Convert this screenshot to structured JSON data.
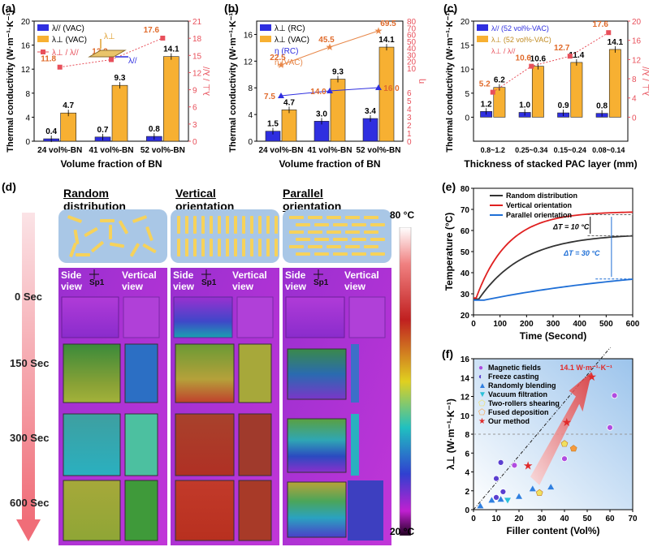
{
  "figure_labels": {
    "a": "(a)",
    "b": "(b)",
    "c": "(c)",
    "d": "(d)",
    "e": "(e)",
    "f": "(f)"
  },
  "colors": {
    "blue": "#2f2fe0",
    "orange": "#f7b032",
    "red_axis": "#e8505b"
  },
  "chart_data": [
    {
      "id": "a",
      "type": "bar",
      "xlabel": "Volume fraction of BN",
      "ylabel": "Thermal conductivity (W·m⁻¹·K⁻¹)",
      "ylabel2": "λ⊥ / λ//",
      "categories": [
        "24 vol%-BN",
        "41 vol%-BN",
        "52 vol%-BN"
      ],
      "ylim": [
        0,
        20
      ],
      "yticks": [
        "0",
        "4",
        "8",
        "12",
        "16",
        "20"
      ],
      "y2lim": [
        -3,
        21
      ],
      "y2ticks": [
        "0",
        "3",
        "6",
        "9",
        "12",
        "15",
        "18",
        "21"
      ],
      "series": [
        {
          "name": "λ// (VAC)",
          "values": [
            0.4,
            0.7,
            0.8
          ],
          "labels": [
            "0.4",
            "0.7",
            "0.8"
          ]
        },
        {
          "name": "λ⊥ (VAC)",
          "values": [
            4.7,
            9.3,
            14.1
          ],
          "labels": [
            "4.7",
            "9.3",
            "14.1"
          ]
        }
      ],
      "ratio": {
        "name": "λ⊥ / λ//",
        "values": [
          11.8,
          13.3,
          17.6
        ],
        "labels": [
          "11.8",
          "13.3",
          "17.6"
        ]
      },
      "inset_labels": {
        "perp": "λ⊥",
        "par": "λ//"
      }
    },
    {
      "id": "b",
      "type": "bar",
      "xlabel": "Volume fraction of BN",
      "ylabel": "Thermal conductivity (W·m⁻¹·K⁻¹)",
      "ylabel2": "η",
      "categories": [
        "24 vol%-BN",
        "41 vol%-BN",
        "52 vol%-BN"
      ],
      "ylim": [
        0,
        18
      ],
      "yticks": [
        "0",
        "4",
        "8",
        "12",
        "16"
      ],
      "y2ticks_top": [
        "10",
        "20",
        "30",
        "40",
        "50",
        "60",
        "70",
        "80"
      ],
      "y2ticks_bottom": [
        "0",
        "1",
        "2",
        "3",
        "4",
        "5",
        "6"
      ],
      "series": [
        {
          "name": "λ⊥ (RC)",
          "values": [
            1.5,
            3.0,
            3.4
          ],
          "labels": [
            "1.5",
            "3.0",
            "3.4"
          ]
        },
        {
          "name": "λ⊥ (VAC)",
          "values": [
            4.7,
            9.3,
            14.1
          ],
          "labels": [
            "4.7",
            "9.3",
            "14.1"
          ]
        }
      ],
      "eta_rc": {
        "name": "η (RC)",
        "labels": [
          "7.5",
          "14.0",
          "16.0"
        ]
      },
      "eta_vac": {
        "name": "η (VAC)",
        "labels": [
          "22.5",
          "45.5",
          "69.5"
        ]
      }
    },
    {
      "id": "c",
      "type": "bar",
      "xlabel": "Thickness of stacked PAC layer (mm)",
      "ylabel": "Thermal conductivity (W·m⁻¹·K⁻¹)",
      "ylabel2": "λ⊥ / λ//",
      "categories": [
        "0.8~1.2",
        "0.25~0.34",
        "0.15~0.24",
        "0.08~0.14"
      ],
      "ylim": [
        -5,
        20
      ],
      "yticks": [
        "0",
        "5",
        "10",
        "15",
        "20"
      ],
      "y2ticks": [
        "0",
        "4",
        "8",
        "12",
        "16",
        "20"
      ],
      "series": [
        {
          "name": "λ// (52 vol%-VAC)",
          "values": [
            1.2,
            1.0,
            0.9,
            0.8
          ],
          "labels": [
            "1.2",
            "1.0",
            "0.9",
            "0.8"
          ]
        },
        {
          "name": "λ⊥ (52 vol%-VAC)",
          "values": [
            6.2,
            10.6,
            11.4,
            14.1
          ],
          "labels": [
            "6.2",
            "10.6",
            "11.4",
            "14.1"
          ]
        }
      ],
      "ratio": {
        "name": "λ⊥ / λ//",
        "values": [
          5.2,
          10.6,
          12.7,
          17.6
        ],
        "labels": [
          "5.2",
          "10.6",
          "12.7",
          "17.6"
        ]
      }
    },
    {
      "id": "e",
      "type": "line",
      "xlabel": "Time (Second)",
      "ylabel": "Temperature (°C)",
      "xlim": [
        0,
        600
      ],
      "ylim": [
        20,
        80
      ],
      "xticks": [
        "0",
        "100",
        "200",
        "300",
        "400",
        "500",
        "600"
      ],
      "yticks": [
        "20",
        "30",
        "40",
        "50",
        "60",
        "70",
        "80"
      ],
      "series": [
        {
          "name": "Random distribution",
          "color": "#333333",
          "end": 57.5
        },
        {
          "name": "Vertical orientation",
          "color": "#e02020",
          "end": 67.5
        },
        {
          "name": "Parallel orientation",
          "color": "#1f6fd6",
          "end": 37
        }
      ],
      "annotations": [
        "ΔT = 10 °C",
        "ΔT = 30 °C"
      ]
    },
    {
      "id": "f",
      "type": "scatter",
      "xlabel": "Filler content (Vol%)",
      "ylabel": "λ⊥ (W·m⁻¹·K⁻¹)",
      "xlim": [
        0,
        70
      ],
      "ylim": [
        0,
        16
      ],
      "xticks": [
        "0",
        "10",
        "20",
        "30",
        "40",
        "50",
        "60",
        "70"
      ],
      "yticks": [
        "0",
        "2",
        "4",
        "6",
        "8",
        "10",
        "12",
        "14",
        "16"
      ],
      "callout": "14.1 W·m⁻¹·K⁻¹",
      "legend": [
        "Magnetic fields",
        "Freeze casting",
        "Randomly blending",
        "Vacuum filtration",
        "Two-rollers shearing",
        "Fused deposition",
        "Our method"
      ],
      "series": [
        {
          "name": "Magnetic fields",
          "color": "#b04ce0",
          "points": [
            [
              18,
              4.7
            ],
            [
              40,
              5.4
            ],
            [
              60,
              8.7
            ],
            [
              62,
              12.1
            ]
          ]
        },
        {
          "name": "Freeze casting",
          "color": "#5a3fd0",
          "points": [
            [
              10,
              3.3
            ],
            [
              12,
              5.0
            ],
            [
              10,
              1.3
            ],
            [
              13,
              1.9
            ]
          ]
        },
        {
          "name": "Randomly blending",
          "color": "#2f7fe0",
          "points": [
            [
              3,
              0.4
            ],
            [
              8,
              1.0
            ],
            [
              12,
              1.1
            ],
            [
              20,
              1.4
            ],
            [
              26,
              2.2
            ],
            [
              34,
              2.4
            ]
          ]
        },
        {
          "name": "Vacuum filtration",
          "color": "#2bc0d8",
          "points": [
            [
              15,
              1.0
            ]
          ]
        },
        {
          "name": "Two-rollers shearing",
          "color": "#f0e060",
          "points": [
            [
              29,
              1.8
            ],
            [
              40,
              7.0
            ]
          ]
        },
        {
          "name": "Fused deposition",
          "color": "#f59a3c",
          "points": [
            [
              44,
              6.5
            ]
          ]
        },
        {
          "name": "Our method",
          "color": "#e02b2b",
          "points": [
            [
              24,
              4.7
            ],
            [
              41,
              9.3
            ],
            [
              52,
              14.1
            ]
          ]
        }
      ]
    }
  ],
  "panel_d": {
    "columns": [
      "Random distribution",
      "Vertical orientation",
      "Parallel orientation"
    ],
    "view_labels": [
      "Side view",
      "Vertical view"
    ],
    "marker": "Sp1",
    "times": [
      "0 Sec",
      "150 Sec",
      "300 Sec",
      "600 Sec"
    ],
    "scale_max": "80 °C",
    "scale_min": "20 °C"
  }
}
